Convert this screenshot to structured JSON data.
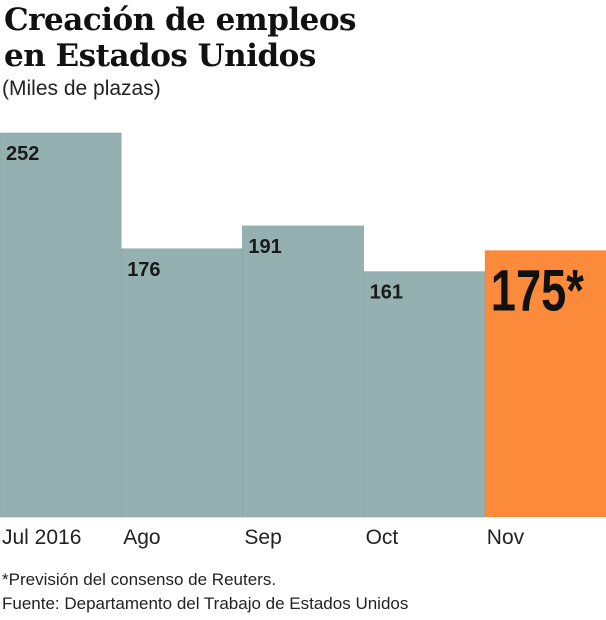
{
  "chart_data": {
    "type": "bar",
    "title": "Creación de empleos en Estados Unidos",
    "title_lines": [
      "Creación de empleos",
      "en Estados Unidos"
    ],
    "subtitle": "(Miles de plazas)",
    "categories": [
      "Jul 2016",
      "Ago",
      "Sep",
      "Oct",
      "Nov"
    ],
    "values": [
      252,
      176,
      191,
      161,
      175
    ],
    "data_labels": [
      "252",
      "176",
      "191",
      "161",
      "175*"
    ],
    "highlight_index": 4,
    "ylim": [
      0,
      252
    ],
    "grid": false,
    "colors": {
      "bar": "#95b0b0",
      "highlight": "#fb8a3a"
    }
  },
  "footnotes": [
    "*Previsión del consenso de Reuters.",
    "Fuente: Departamento del Trabajo de Estados Unidos"
  ]
}
